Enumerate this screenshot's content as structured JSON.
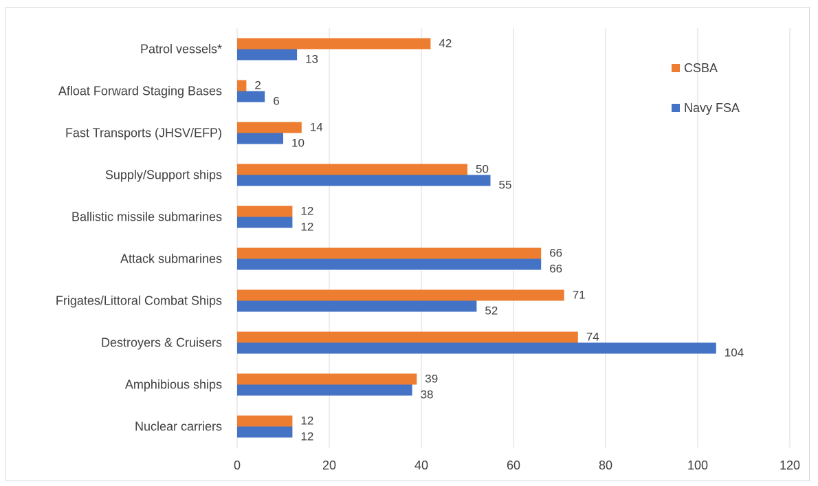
{
  "chart_data": {
    "type": "bar",
    "orientation": "horizontal",
    "categories": [
      "Nuclear carriers",
      "Amphibious ships",
      "Destroyers & Cruisers",
      "Frigates/Littoral Combat Ships",
      "Attack submarines",
      "Ballistic missile submarines",
      "Supply/Support ships",
      "Fast Transports (JHSV/EFP)",
      "Afloat Forward Staging Bases",
      "Patrol vessels*"
    ],
    "series": [
      {
        "name": "Navy FSA",
        "color": "#4472c4",
        "values": [
          12,
          38,
          104,
          52,
          66,
          12,
          55,
          10,
          6,
          13
        ]
      },
      {
        "name": "CSBA",
        "color": "#ed7d31",
        "values": [
          12,
          39,
          74,
          71,
          66,
          12,
          50,
          14,
          2,
          42
        ]
      }
    ],
    "legend_order": [
      "CSBA",
      "Navy FSA"
    ],
    "legend_position": "right",
    "xlim": [
      0,
      120
    ],
    "x_ticks": [
      "0",
      "20",
      "40",
      "60",
      "80",
      "100",
      "120"
    ],
    "grid": true,
    "title": "",
    "xlabel": "",
    "ylabel": ""
  }
}
